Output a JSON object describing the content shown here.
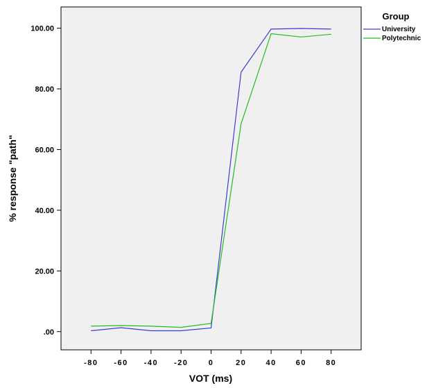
{
  "chart_data": {
    "type": "line",
    "x": [
      -80,
      -60,
      -40,
      -20,
      0,
      20,
      40,
      60,
      80
    ],
    "x_tick_labels": [
      "-80",
      "-60",
      "-40",
      "-20",
      "0",
      "20",
      "40",
      "60",
      "80"
    ],
    "y_tick_values": [
      0,
      20,
      40,
      60,
      80,
      100
    ],
    "y_tick_labels": [
      ".00",
      "20.00",
      "40.00",
      "60.00",
      "80.00",
      "100.00"
    ],
    "xlabel": "VOT (ms)",
    "ylabel": "% response \"path\"",
    "xlim": [
      -100,
      100
    ],
    "ylim": [
      -6,
      107
    ],
    "grid": false,
    "legend": {
      "title": "Group",
      "placement": "right"
    },
    "series": [
      {
        "name": "University",
        "color": "#3b3bd0",
        "values": [
          0.3,
          1.3,
          0.3,
          0.3,
          1.2,
          85.5,
          99.7,
          99.9,
          99.7
        ]
      },
      {
        "name": "Polytechnic",
        "color": "#22bb22",
        "values": [
          1.8,
          2.0,
          1.8,
          1.4,
          2.7,
          68.5,
          98.2,
          97.1,
          98.0
        ]
      }
    ],
    "plot_background": "#f0f0f0"
  }
}
